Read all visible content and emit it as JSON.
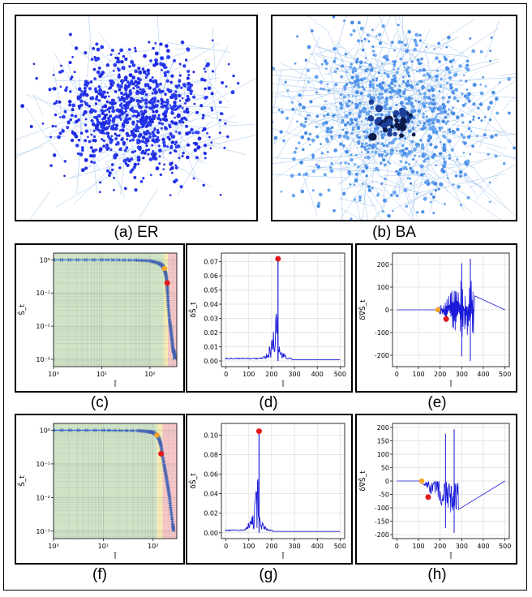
{
  "captions": {
    "a": "(a) ER",
    "b": "(b) BA",
    "c": "(c)",
    "d": "(d)",
    "e": "(e)",
    "f": "(f)",
    "g": "(g)",
    "h": "(h)"
  },
  "colors": {
    "blue": "#1a1ad8",
    "orange": "#f5a623",
    "red": "#e31a1c",
    "green": "#cfe3c6",
    "yellow": "#f6ecb4",
    "pink": "#f6c6c6",
    "edge": "#9ec3ec"
  },
  "chart_data": [
    {
      "id": "c",
      "type": "line",
      "scale": "loglog",
      "xlabel": "l̃",
      "ylabel": "Ŝ_t",
      "xticks": [
        "10⁰",
        "10¹",
        "10²"
      ],
      "yticks": [
        "10⁰",
        "10⁻¹",
        "10⁻²",
        "10⁻³"
      ],
      "xlim": [
        1,
        360
      ],
      "ylim": [
        0.0006,
        1.6
      ],
      "regions": [
        [
          1,
          190,
          "green"
        ],
        [
          190,
          235,
          "yellow"
        ],
        [
          235,
          360,
          "pink"
        ]
      ],
      "x": [
        1,
        10,
        50,
        100,
        150,
        180,
        200,
        215,
        225,
        232,
        240,
        255,
        270,
        285,
        300,
        320,
        330
      ],
      "y": [
        1,
        1,
        0.98,
        0.93,
        0.8,
        0.68,
        0.52,
        0.35,
        0.2,
        0.1,
        0.04,
        0.015,
        0.008,
        0.004,
        0.002,
        0.0015,
        0.001
      ],
      "orange_point": [
        200,
        0.55
      ],
      "red_point": [
        228,
        0.2
      ]
    },
    {
      "id": "d",
      "type": "line",
      "xlabel": "l̃",
      "ylabel": "δŜ_t",
      "xticks": [
        "0",
        "100",
        "200",
        "300",
        "400",
        "500"
      ],
      "yticks": [
        "0.00",
        "0.01",
        "0.02",
        "0.03",
        "0.04",
        "0.05",
        "0.06",
        "0.07"
      ],
      "xlim": [
        -20,
        520
      ],
      "ylim": [
        -0.004,
        0.076
      ],
      "peak": [
        228,
        0.072
      ],
      "red_point": [
        228,
        0.072
      ]
    },
    {
      "id": "e",
      "type": "line",
      "xlabel": "l̃",
      "ylabel": "δ∇Ŝ_t",
      "xticks": [
        "0",
        "100",
        "200",
        "300",
        "400",
        "500"
      ],
      "yticks": [
        "200",
        "100",
        "0",
        "-100",
        "-200"
      ],
      "xlim": [
        -20,
        520
      ],
      "ylim": [
        -250,
        250
      ],
      "orange_point": [
        190,
        0
      ],
      "red_point": [
        228,
        -40
      ]
    },
    {
      "id": "f",
      "type": "line",
      "scale": "loglog",
      "xlabel": "l̃",
      "ylabel": "Ŝ_t",
      "xticks": [
        "10⁰",
        "10¹",
        "10²"
      ],
      "yticks": [
        "10⁰",
        "10⁻¹",
        "10⁻²",
        "10⁻³"
      ],
      "xlim": [
        1,
        300
      ],
      "ylim": [
        0.0006,
        1.6
      ],
      "regions": [
        [
          1,
          120,
          "green"
        ],
        [
          120,
          155,
          "yellow"
        ],
        [
          155,
          300,
          "pink"
        ]
      ],
      "x": [
        1,
        10,
        50,
        80,
        100,
        120,
        135,
        145,
        155,
        170,
        185,
        200,
        215,
        230,
        250,
        260
      ],
      "y": [
        1,
        1,
        0.97,
        0.92,
        0.86,
        0.72,
        0.52,
        0.35,
        0.17,
        0.08,
        0.04,
        0.02,
        0.01,
        0.004,
        0.0015,
        0.001
      ],
      "orange_point": [
        120,
        0.72
      ],
      "red_point": [
        145,
        0.2
      ]
    },
    {
      "id": "g",
      "type": "line",
      "xlabel": "l̃",
      "ylabel": "δŜ_t",
      "xticks": [
        "0",
        "100",
        "200",
        "300",
        "400",
        "500"
      ],
      "yticks": [
        "0.00",
        "0.02",
        "0.04",
        "0.06",
        "0.08",
        "0.10"
      ],
      "xlim": [
        -20,
        520
      ],
      "ylim": [
        -0.006,
        0.112
      ],
      "peak": [
        145,
        0.104
      ],
      "red_point": [
        145,
        0.104
      ]
    },
    {
      "id": "h",
      "type": "line",
      "xlabel": "l̃",
      "ylabel": "δ∇Ŝ_t",
      "xticks": [
        "0",
        "100",
        "200",
        "300",
        "400",
        "500"
      ],
      "yticks": [
        "200",
        "150",
        "100",
        "50",
        "0",
        "-50",
        "-100",
        "-150",
        "-200"
      ],
      "xlim": [
        -20,
        520
      ],
      "ylim": [
        -215,
        215
      ],
      "orange_point": [
        115,
        0
      ],
      "red_point": [
        145,
        -60
      ]
    }
  ]
}
